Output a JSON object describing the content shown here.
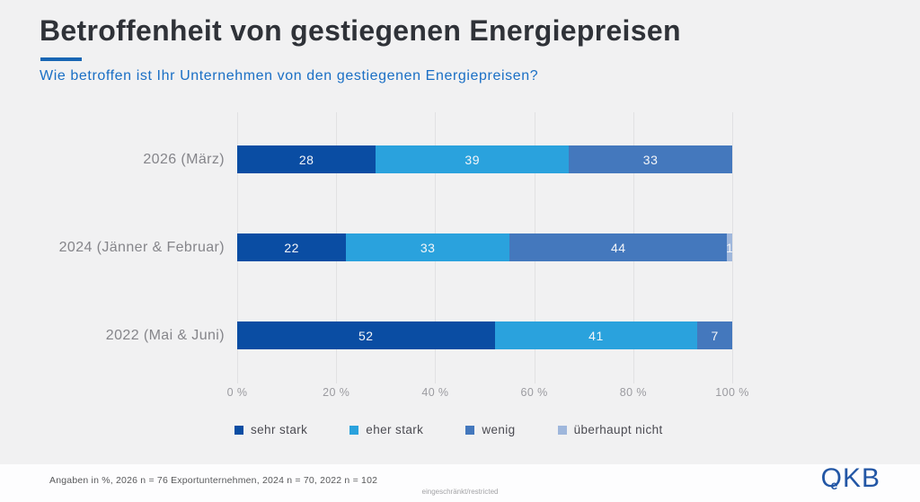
{
  "slide": {
    "title": "Betroffenheit von gestiegenen Energiepreisen",
    "subtitle": "Wie betroffen ist Ihr Unternehmen von den gestiegenen Energiepreisen?",
    "footnote": "Angaben in %, 2026 n = 76 Exportunternehmen, 2024 n = 70, 2022 n = 102",
    "classification": "eingeschränkt/restricted",
    "logo": {
      "o": "O",
      "e": "e",
      "kb": "KB"
    }
  },
  "colors": {
    "background": "#f1f1f2",
    "footer_background": "#fdfdfe",
    "title": "#2f3238",
    "subtitle": "#1a6fc5",
    "accent_underline": "#1866b4",
    "gridline": "#e1e1e3",
    "axis_text": "#9b9ba0",
    "category_text": "#85858a",
    "value_label_text": "#f4f6f9",
    "logo_blue": "#2256a5"
  },
  "chart_data": {
    "type": "bar",
    "orientation": "horizontal",
    "stacked": true,
    "title": "Betroffenheit von gestiegenen Energiepreisen",
    "xlabel": "",
    "ylabel": "",
    "xlim": [
      0,
      100
    ],
    "x_ticks": [
      "0 %",
      "20 %",
      "40 %",
      "60 %",
      "80 %",
      "100 %"
    ],
    "grid": true,
    "value_labels": true,
    "legend_position": "bottom",
    "unit": "percent",
    "categories": [
      "2026 (März)",
      "2024 (Jänner & Februar)",
      "2022 (Mai & Juni)"
    ],
    "series": [
      {
        "name": "sehr stark",
        "color": "#0a4da3",
        "values": [
          28,
          22,
          52
        ]
      },
      {
        "name": "eher stark",
        "color": "#2aa2dd",
        "values": [
          39,
          33,
          41
        ]
      },
      {
        "name": "wenig",
        "color": "#4478bd",
        "values": [
          33,
          44,
          7
        ]
      },
      {
        "name": "überhaupt nicht",
        "color": "#9fb7dc",
        "values": [
          0,
          1,
          0
        ]
      }
    ]
  }
}
